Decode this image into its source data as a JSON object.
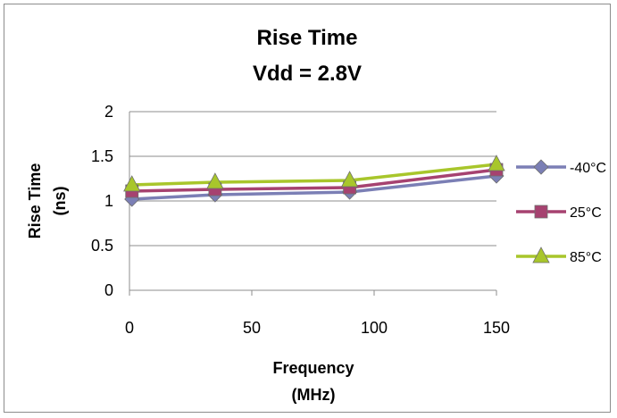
{
  "chart_data": {
    "type": "line",
    "title_lines": [
      "Rise Time",
      "Vdd = 2.8V"
    ],
    "xlabel_lines": [
      "Frequency",
      "(MHz)"
    ],
    "ylabel_lines": [
      "Rise Time",
      "(ns)"
    ],
    "x": [
      1,
      35,
      90,
      150
    ],
    "xlim": [
      0,
      150
    ],
    "ylim": [
      0,
      2
    ],
    "xticks": [
      0,
      50,
      100,
      150
    ],
    "xtick_labels": [
      "0",
      "50",
      "100",
      "150"
    ],
    "yticks": [
      0,
      0.5,
      1,
      1.5,
      2
    ],
    "ytick_labels": [
      "0",
      "0.5",
      "1",
      "1.5",
      "2"
    ],
    "grid": "horizontal",
    "legend_position": "right",
    "series": [
      {
        "name": "-40°C",
        "color": "#7B7FB5",
        "marker": "diamond",
        "values": [
          1.02,
          1.07,
          1.1,
          1.28
        ]
      },
      {
        "name": "25°C",
        "color": "#A64270",
        "marker": "square",
        "values": [
          1.11,
          1.13,
          1.15,
          1.35
        ]
      },
      {
        "name": "85°C",
        "color": "#A8C62B",
        "marker": "triangle",
        "values": [
          1.18,
          1.21,
          1.23,
          1.41
        ]
      }
    ]
  }
}
